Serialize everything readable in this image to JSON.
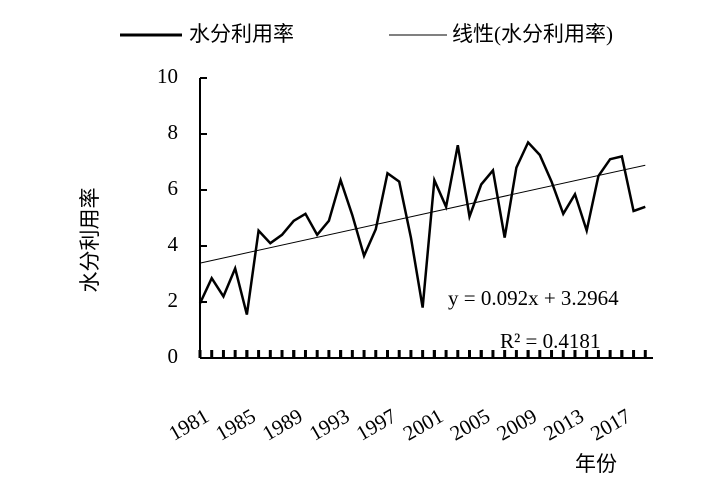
{
  "chart_data": {
    "type": "line",
    "x": [
      1981,
      1982,
      1983,
      1984,
      1985,
      1986,
      1987,
      1988,
      1989,
      1990,
      1991,
      1992,
      1993,
      1994,
      1995,
      1996,
      1997,
      1998,
      1999,
      2000,
      2001,
      2002,
      2003,
      2004,
      2005,
      2006,
      2007,
      2008,
      2009,
      2010,
      2011,
      2012,
      2013,
      2014,
      2015,
      2016,
      2017,
      2018,
      2019
    ],
    "series": [
      {
        "name": "水分利用率",
        "color": "#000000",
        "values": [
          1.95,
          2.85,
          2.2,
          3.2,
          1.55,
          4.55,
          4.1,
          4.4,
          4.9,
          5.15,
          4.4,
          4.9,
          6.35,
          5.1,
          3.65,
          4.6,
          6.6,
          6.3,
          4.3,
          1.8,
          6.35,
          5.4,
          7.6,
          5.05,
          6.2,
          6.7,
          4.3,
          6.8,
          7.7,
          7.25,
          6.3,
          5.15,
          5.85,
          4.55,
          6.5,
          7.1,
          7.2,
          5.25,
          5.4
        ]
      }
    ],
    "trendline": {
      "name": "线性(水分利用率)",
      "slope": 0.092,
      "intercept": 3.2964,
      "color": "#000000"
    },
    "annotations": [
      "y = 0.092x + 3.2964",
      "R² = 0.4181"
    ],
    "ylabel": "水分利用率",
    "xlabel": "年份",
    "xlim": [
      1981,
      2020
    ],
    "xticks": [
      1981,
      1985,
      1989,
      1993,
      1997,
      2001,
      2005,
      2009,
      2013,
      2017
    ],
    "ylim": [
      0,
      10
    ],
    "yticks": [
      0,
      2,
      4,
      6,
      8,
      10
    ],
    "legend": "top"
  }
}
